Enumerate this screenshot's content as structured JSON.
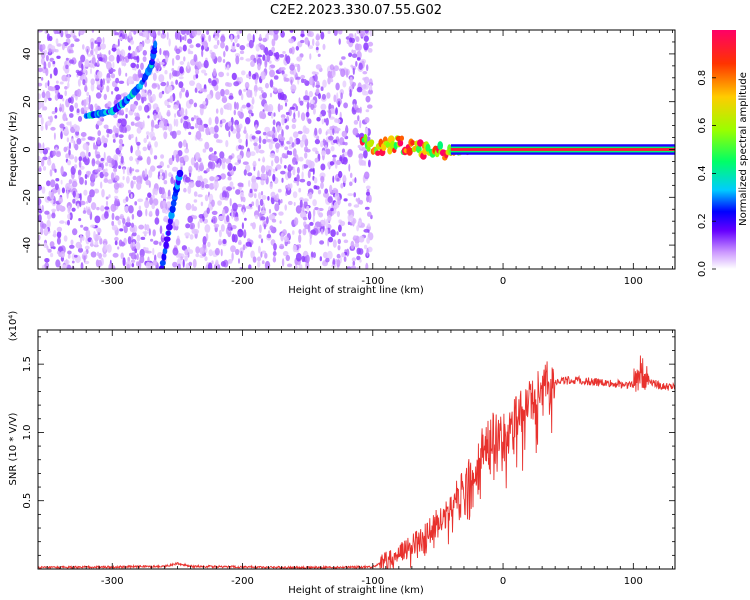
{
  "figure_title": "C2E2.2023.330.07.55.G02",
  "chart_data": [
    {
      "type": "heatmap",
      "xlabel": "Height of straight line (km)",
      "ylabel": "Frequency (Hz)",
      "xlim": [
        -357,
        132
      ],
      "ylim": [
        -50,
        50
      ],
      "x_ticks": [
        -300,
        -200,
        -100,
        0,
        100
      ],
      "y_ticks": [
        40,
        20,
        0,
        -20,
        -40
      ],
      "colorbar": {
        "label": "Normalized spectral amplitude",
        "range": [
          0,
          1
        ],
        "ticks": [
          "0.0",
          "0.2",
          "0.4",
          "0.6",
          "0.8"
        ],
        "colors": [
          "#ffffff",
          "#cc99ff",
          "#6600ff",
          "#0000ff",
          "#00ccff",
          "#00ff66",
          "#99ff00",
          "#ffcc00",
          "#ff3300",
          "#ff0066"
        ]
      },
      "noise_region_x": [
        -357,
        -101
      ],
      "features": [
        {
          "name": "",
          "points": [
            [
              -320,
              14
            ],
            [
              -300,
              16
            ],
            [
              -290,
              20
            ],
            [
              -278,
              27
            ],
            [
              -270,
              35
            ],
            [
              -267,
              44
            ]
          ],
          "amplitude": 0.45
        },
        {
          "name": "",
          "points": [
            [
              -262,
              -50
            ],
            [
              -257,
              -35
            ],
            [
              -252,
              -20
            ],
            [
              -248,
              -10
            ]
          ],
          "amplitude": 0.4
        },
        {
          "name": "",
          "points": [
            [
              -108,
              4
            ],
            [
              -95,
              1
            ],
            [
              -80,
              2
            ],
            [
              -60,
              0
            ],
            [
              -40,
              -1
            ],
            [
              -10,
              0
            ],
            [
              132,
              0
            ]
          ],
          "amplitude": 0.9
        }
      ]
    },
    {
      "type": "line",
      "xlabel": "Height of straight line (km)",
      "ylabel": "SNR (10 * V/V)",
      "y_multiplier": "(x10⁴)",
      "xlim": [
        -357,
        132
      ],
      "ylim": [
        0,
        1.75
      ],
      "x_ticks": [
        -300,
        -200,
        -100,
        0,
        100
      ],
      "y_ticks": [
        "0.5",
        "1.0",
        "1.5"
      ],
      "color": "#e8312d",
      "x": [
        -357,
        -300,
        -260,
        -250,
        -240,
        -200,
        -150,
        -100,
        -85,
        -70,
        -60,
        -50,
        -40,
        -30,
        -20,
        -10,
        0,
        10,
        20,
        30,
        40,
        60,
        80,
        100,
        105,
        110,
        120,
        132
      ],
      "y": [
        0.01,
        0.015,
        0.02,
        0.04,
        0.02,
        0.015,
        0.01,
        0.015,
        0.08,
        0.18,
        0.25,
        0.35,
        0.45,
        0.62,
        0.8,
        0.98,
        1.05,
        1.12,
        1.22,
        1.32,
        1.38,
        1.38,
        1.36,
        1.35,
        1.45,
        1.4,
        1.34,
        1.33
      ]
    }
  ]
}
